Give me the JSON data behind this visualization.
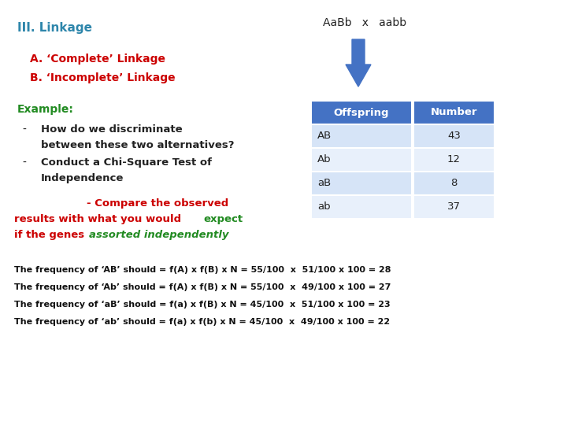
{
  "title": "III. Linkage",
  "title_color": "#2E86AB",
  "subtitle_a": "A. ‘Complete’ Linkage",
  "subtitle_b": "B. ‘Incomplete’ Linkage",
  "subtitle_color": "#CC0000",
  "cross_text": "AaBb   x   aabb",
  "example_label": "Example:",
  "example_color": "#228B22",
  "bullet1_line1": "How do we discriminate",
  "bullet1_line2": "between these two alternatives?",
  "bullet2_line1": "Conduct a Chi-Square Test of",
  "bullet2_line2": "Independence",
  "compare_line1": "- Compare the observed",
  "compare_line2a": "results with what you would ",
  "compare_line2b": "expect",
  "compare_line3a": "if the genes ",
  "compare_line3b": "assorted independently",
  "compare_color": "#CC0000",
  "expect_color": "#228B22",
  "assorted_color": "#228B22",
  "table_header": [
    "Offspring",
    "Number"
  ],
  "table_data": [
    [
      "AB",
      "43"
    ],
    [
      "Ab",
      "12"
    ],
    [
      "aB",
      "8"
    ],
    [
      "ab",
      "37"
    ]
  ],
  "table_header_color": "#4472C4",
  "table_row_colors": [
    "#D6E4F7",
    "#E8F0FB",
    "#D6E4F7",
    "#E8F0FB"
  ],
  "freq_lines": [
    "The frequency of ‘AB’ should = f(A) x f(B) x N = 55/100  x  51/100 x 100 = 28",
    "The frequency of ‘Ab’ should = f(A) x f(B) x N = 55/100  x  49/100 x 100 = 27",
    "The frequency of ‘aB’ should = f(a) x f(B) x N = 45/100  x  51/100 x 100 = 23",
    "The frequency of ‘ab’ should = f(a) x f(b) x N = 45/100  x  49/100 x 100 = 22"
  ],
  "arrow_color": "#4472C4",
  "bg_color": "#FFFFFF"
}
